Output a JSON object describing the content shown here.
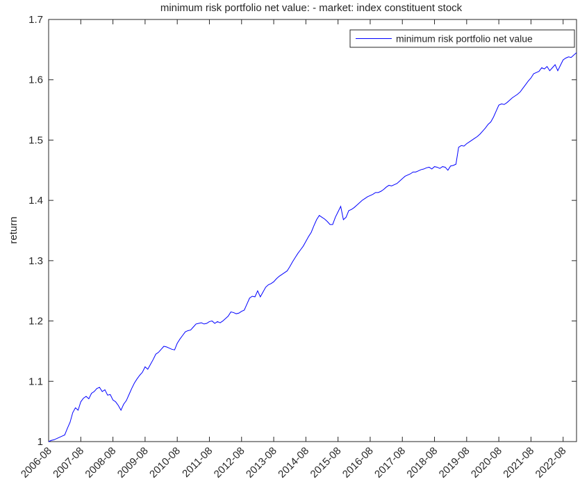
{
  "chart_data": {
    "type": "line",
    "title": "minimum risk portfolio net value: - market: index constituent stock",
    "ylabel": "return",
    "legend": "northeast",
    "x": [
      "2006-08",
      "2006-09",
      "2006-10",
      "2006-11",
      "2006-12",
      "2007-01",
      "2007-02",
      "2007-03",
      "2007-04",
      "2007-05",
      "2007-06",
      "2007-07",
      "2007-08",
      "2007-09",
      "2007-10",
      "2007-11",
      "2007-12",
      "2008-01",
      "2008-02",
      "2008-03",
      "2008-04",
      "2008-05",
      "2008-06",
      "2008-07",
      "2008-08",
      "2008-09",
      "2008-10",
      "2008-11",
      "2008-12",
      "2009-01",
      "2009-02",
      "2009-03",
      "2009-04",
      "2009-05",
      "2009-06",
      "2009-07",
      "2009-08",
      "2009-09",
      "2009-10",
      "2009-11",
      "2009-12",
      "2010-01",
      "2010-02",
      "2010-03",
      "2010-04",
      "2010-05",
      "2010-06",
      "2010-07",
      "2010-08",
      "2010-09",
      "2010-10",
      "2010-11",
      "2010-12",
      "2011-01",
      "2011-02",
      "2011-03",
      "2011-04",
      "2011-05",
      "2011-06",
      "2011-07",
      "2011-08",
      "2011-09",
      "2011-10",
      "2011-11",
      "2011-12",
      "2012-01",
      "2012-02",
      "2012-03",
      "2012-04",
      "2012-05",
      "2012-06",
      "2012-07",
      "2012-08",
      "2012-09",
      "2012-10",
      "2012-11",
      "2012-12",
      "2013-01",
      "2013-02",
      "2013-03",
      "2013-04",
      "2013-05",
      "2013-06",
      "2013-07",
      "2013-08",
      "2013-09",
      "2013-10",
      "2013-11",
      "2013-12",
      "2014-01",
      "2014-02",
      "2014-03",
      "2014-04",
      "2014-05",
      "2014-06",
      "2014-07",
      "2014-08",
      "2014-09",
      "2014-10",
      "2014-11",
      "2014-12",
      "2015-01",
      "2015-02",
      "2015-03",
      "2015-04",
      "2015-05",
      "2015-06",
      "2015-07",
      "2015-08",
      "2015-09",
      "2015-10",
      "2015-11",
      "2015-12",
      "2016-01",
      "2016-02",
      "2016-03",
      "2016-04",
      "2016-05",
      "2016-06",
      "2016-07",
      "2016-08",
      "2016-09",
      "2016-10",
      "2016-11",
      "2016-12",
      "2017-01",
      "2017-02",
      "2017-03",
      "2017-04",
      "2017-05",
      "2017-06",
      "2017-07",
      "2017-08",
      "2017-09",
      "2017-10",
      "2017-11",
      "2017-12",
      "2018-01",
      "2018-02",
      "2018-03",
      "2018-04",
      "2018-05",
      "2018-06",
      "2018-07",
      "2018-08",
      "2018-09",
      "2018-10",
      "2018-11",
      "2018-12",
      "2019-01",
      "2019-02",
      "2019-03",
      "2019-04",
      "2019-05",
      "2019-06",
      "2019-07",
      "2019-08",
      "2019-09",
      "2019-10",
      "2019-11",
      "2019-12",
      "2020-01",
      "2020-02",
      "2020-03",
      "2020-04",
      "2020-05",
      "2020-06",
      "2020-07",
      "2020-08",
      "2020-09",
      "2020-10",
      "2020-11",
      "2020-12",
      "2021-01",
      "2021-02",
      "2021-03",
      "2021-04",
      "2021-05",
      "2021-06",
      "2021-07",
      "2021-08",
      "2021-09",
      "2021-10",
      "2021-11",
      "2021-12",
      "2022-01",
      "2022-02",
      "2022-03",
      "2022-04",
      "2022-05",
      "2022-06",
      "2022-07",
      "2022-08",
      "2022-09",
      "2022-10",
      "2022-11",
      "2022-12",
      "2023-01"
    ],
    "series": [
      {
        "name": "minimum risk portfolio net value",
        "color": "#0000ff",
        "values": [
          1.0,
          1.002,
          1.003,
          1.005,
          1.007,
          1.009,
          1.011,
          1.022,
          1.032,
          1.048,
          1.056,
          1.052,
          1.066,
          1.072,
          1.075,
          1.071,
          1.08,
          1.083,
          1.088,
          1.09,
          1.083,
          1.086,
          1.077,
          1.078,
          1.069,
          1.066,
          1.06,
          1.052,
          1.062,
          1.068,
          1.078,
          1.088,
          1.097,
          1.104,
          1.11,
          1.115,
          1.124,
          1.12,
          1.128,
          1.136,
          1.145,
          1.148,
          1.153,
          1.158,
          1.157,
          1.155,
          1.153,
          1.152,
          1.163,
          1.17,
          1.176,
          1.182,
          1.184,
          1.185,
          1.19,
          1.195,
          1.196,
          1.197,
          1.195,
          1.196,
          1.199,
          1.2,
          1.196,
          1.199,
          1.197,
          1.2,
          1.204,
          1.208,
          1.215,
          1.214,
          1.212,
          1.213,
          1.216,
          1.218,
          1.228,
          1.238,
          1.241,
          1.24,
          1.25,
          1.24,
          1.248,
          1.256,
          1.26,
          1.262,
          1.265,
          1.27,
          1.274,
          1.277,
          1.28,
          1.283,
          1.29,
          1.298,
          1.305,
          1.312,
          1.318,
          1.324,
          1.332,
          1.34,
          1.347,
          1.358,
          1.368,
          1.375,
          1.372,
          1.369,
          1.365,
          1.36,
          1.36,
          1.372,
          1.381,
          1.39,
          1.368,
          1.372,
          1.383,
          1.385,
          1.388,
          1.392,
          1.396,
          1.4,
          1.403,
          1.406,
          1.408,
          1.41,
          1.413,
          1.413,
          1.415,
          1.418,
          1.422,
          1.425,
          1.424,
          1.426,
          1.428,
          1.432,
          1.436,
          1.44,
          1.442,
          1.444,
          1.447,
          1.447,
          1.449,
          1.451,
          1.452,
          1.454,
          1.455,
          1.452,
          1.456,
          1.455,
          1.453,
          1.456,
          1.455,
          1.45,
          1.457,
          1.458,
          1.46,
          1.488,
          1.491,
          1.49,
          1.494,
          1.497,
          1.5,
          1.503,
          1.506,
          1.51,
          1.515,
          1.52,
          1.526,
          1.53,
          1.538,
          1.548,
          1.558,
          1.56,
          1.559,
          1.562,
          1.566,
          1.57,
          1.573,
          1.576,
          1.58,
          1.586,
          1.592,
          1.598,
          1.603,
          1.61,
          1.612,
          1.614,
          1.62,
          1.618,
          1.622,
          1.615,
          1.62,
          1.625,
          1.615,
          1.624,
          1.633,
          1.636,
          1.638,
          1.637,
          1.641,
          1.645
        ]
      }
    ],
    "xlim": [
      "2006-08",
      "2023-01"
    ],
    "xticks": [
      "2006-08",
      "2007-08",
      "2008-08",
      "2009-08",
      "2010-08",
      "2011-08",
      "2012-08",
      "2013-08",
      "2014-08",
      "2015-08",
      "2016-08",
      "2017-08",
      "2018-08",
      "2019-08",
      "2020-08",
      "2021-08",
      "2022-08"
    ],
    "ylim": [
      1,
      1.7
    ],
    "yticks": [
      1,
      1.1,
      1.2,
      1.3,
      1.4,
      1.5,
      1.6,
      1.7
    ],
    "grid": false
  }
}
